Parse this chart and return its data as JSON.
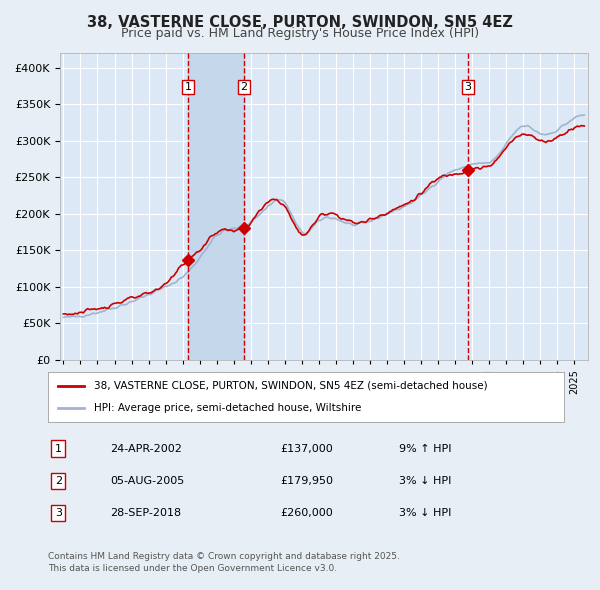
{
  "title": "38, VASTERNE CLOSE, PURTON, SWINDON, SN5 4EZ",
  "subtitle": "Price paid vs. HM Land Registry's House Price Index (HPI)",
  "legend_line1": "38, VASTERNE CLOSE, PURTON, SWINDON, SN5 4EZ (semi-detached house)",
  "legend_line2": "HPI: Average price, semi-detached house, Wiltshire",
  "footer": "Contains HM Land Registry data © Crown copyright and database right 2025.\nThis data is licensed under the Open Government Licence v3.0.",
  "transactions": [
    {
      "num": 1,
      "date": "24-APR-2002",
      "price": 137000,
      "pct": "9%",
      "dir": "↑"
    },
    {
      "num": 2,
      "date": "05-AUG-2005",
      "price": 179950,
      "pct": "3%",
      "dir": "↓"
    },
    {
      "num": 3,
      "date": "28-SEP-2018",
      "price": 260000,
      "pct": "3%",
      "dir": "↓"
    }
  ],
  "transaction_dates_decimal": [
    2002.31,
    2005.59,
    2018.75
  ],
  "transaction_prices": [
    137000,
    179950,
    260000
  ],
  "hpi_line_color": "#a0b4d0",
  "price_line_color": "#cc0000",
  "marker_color": "#cc0000",
  "vline_color": "#cc0000",
  "shade_color": "#dce8f5",
  "background_color": "#e8eef5",
  "plot_bg_color": "#dce8f5",
  "grid_color": "#ffffff",
  "ylim": [
    0,
    420000
  ],
  "yticks": [
    0,
    50000,
    100000,
    150000,
    200000,
    250000,
    300000,
    350000,
    400000
  ],
  "xlabel_start_year": 1995,
  "xlabel_end_year": 2025
}
